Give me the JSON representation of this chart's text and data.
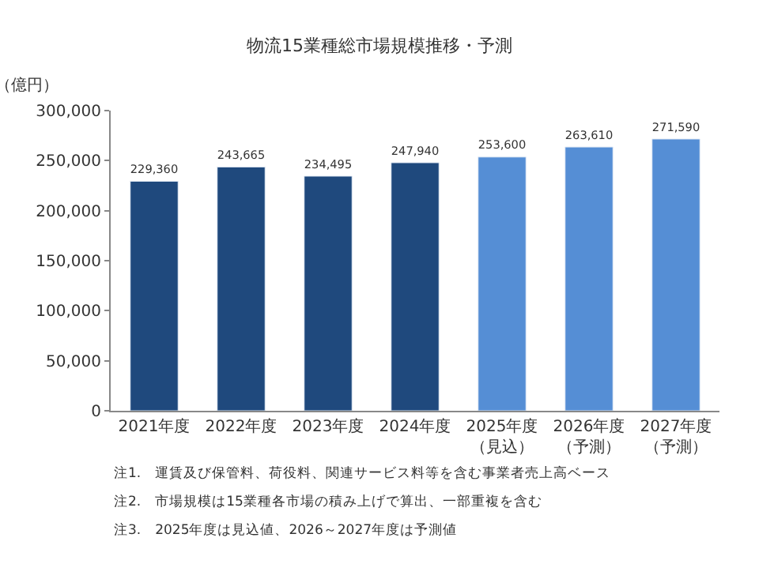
{
  "chart_data": {
    "type": "bar",
    "title": "物流15業種総市場規模推移・予測",
    "ylabel": "（億円）",
    "categories": [
      "2021年度",
      "2022年度",
      "2023年度",
      "2024年度",
      "2025年度（見込）",
      "2026年度（予測）",
      "2027年度（予測）"
    ],
    "values": [
      229360,
      243665,
      234495,
      247940,
      253600,
      263610,
      271590
    ],
    "colors": [
      "#1f497d",
      "#1f497d",
      "#1f497d",
      "#1f497d",
      "#558ed5",
      "#558ed5",
      "#558ed5"
    ],
    "value_labels": [
      "229,360",
      "243,665",
      "234,495",
      "247,940",
      "253,600",
      "263,610",
      "271,590"
    ],
    "ylim": [
      0,
      300000
    ],
    "yticks": [
      {
        "value": 0,
        "label": "0"
      },
      {
        "value": 50000,
        "label": "50,000"
      },
      {
        "value": 100000,
        "label": "100,000"
      },
      {
        "value": 150000,
        "label": "150,000"
      },
      {
        "value": 200000,
        "label": "200,000"
      },
      {
        "value": 250000,
        "label": "250,000"
      },
      {
        "value": 300000,
        "label": "300,000"
      }
    ],
    "annotations": [
      "注1.　運賃及び保管料、荷役料、関連サービス料等を含む事業者売上高ベース",
      "注2.　市場規模は15業種各市場の積み上げで算出、一部重複を含む",
      "注3.　2025年度は見込値、2026～2027年度は予測値"
    ]
  }
}
